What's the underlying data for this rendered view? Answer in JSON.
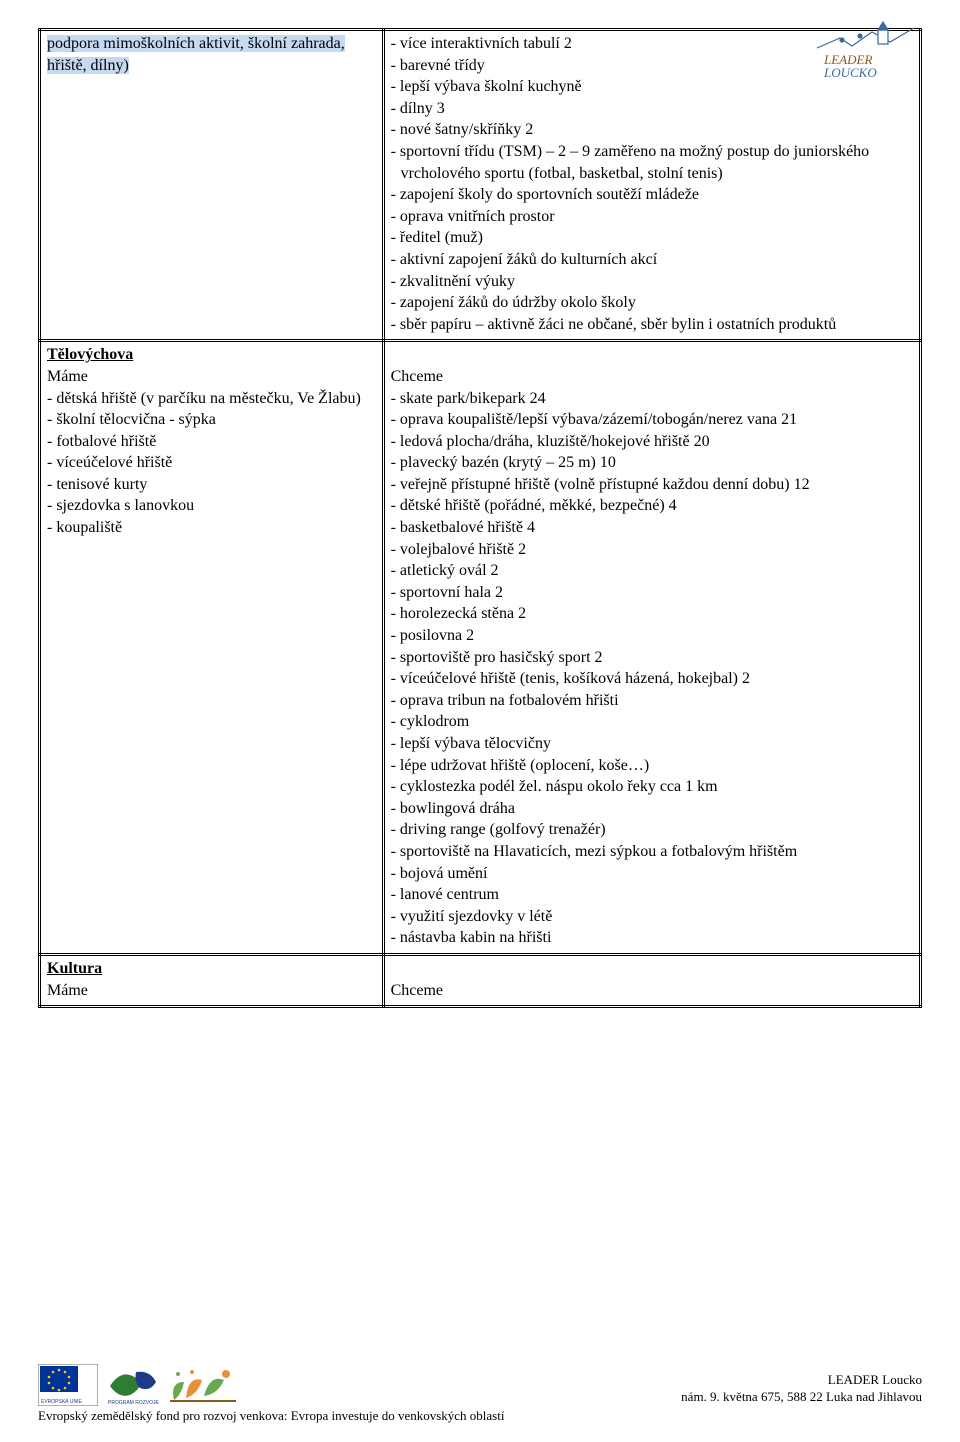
{
  "left_top_highlight": "podpora mimoškolních aktivit, školní zahrada, hřiště, dílny)",
  "right_top_items": [
    "více interaktivních tabulí 2",
    "barevné třídy",
    "lepší výbava školní kuchyně",
    "dílny 3",
    "nové šatny/skříňky 2",
    "sportovní třídu (TSM) – 2 – 9 zaměřeno na možný postup do juniorského vrcholového sportu (fotbal, basketbal, stolní tenis)",
    "zapojení školy do sportovních soutěží mládeže",
    "oprava vnitřních prostor",
    "ředitel (muž)",
    "aktivní zapojení žáků do kulturních akcí",
    "zkvalitnění výuky",
    "zapojení žáků do údržby okolo školy",
    "sběr papíru – aktivně žáci ne občané, sběr bylin i ostatních produktů"
  ],
  "section_televychova": "Tělovýchova",
  "mame": "Máme",
  "chceme": "Chceme",
  "left_tel_items": [
    "dětská hřiště (v parčíku na městečku, Ve Žlabu)",
    "školní tělocvična - sýpka",
    "fotbalové hřiště",
    "víceúčelové hřiště",
    "tenisové kurty",
    "sjezdovka s lanovkou",
    "koupaliště"
  ],
  "right_tel_items": [
    "skate park/bikepark 24",
    "oprava koupaliště/lepší výbava/zázemí/tobogán/nerez vana 21",
    "ledová plocha/dráha, kluziště/hokejové hřiště 20",
    "plavecký bazén (krytý – 25 m) 10",
    "veřejně přístupné hřiště (volně přístupné každou denní dobu) 12",
    "dětské hřiště (pořádné, měkké, bezpečné) 4",
    "basketbalové hřiště 4",
    "volejbalové hřiště 2",
    "atletický ovál 2",
    "sportovní hala 2",
    "horolezecká stěna 2",
    "posilovna 2",
    "sportoviště pro hasičský sport 2",
    "víceúčelové hřiště (tenis, košíková házená, hokejbal) 2",
    "oprava tribun na fotbalovém hřišti",
    "cyklodrom",
    "lepší výbava tělocvičny",
    "lépe udržovat hřiště (oplocení, koše…)",
    "cyklostezka podél žel. náspu okolo řeky cca 1 km",
    "bowlingová dráha",
    "driving range (golfový trenažér)",
    "sportoviště na Hlavaticích, mezi sýpkou a fotbalovým hřištěm",
    "bojová umění",
    "lanové centrum",
    "využití sjezdovky v létě",
    "nástavba kabin na hřišti"
  ],
  "section_kultura": "Kultura",
  "logo_top_title": "LEADER LOUCKO",
  "logo_top_color_main": "#3b6aa0",
  "logo_top_color_accent": "#8a5a1a",
  "footer": {
    "leader_line1": "LEADER Loucko",
    "leader_line2": "nám. 9. května 675, 588 22  Luka nad Jihlavou",
    "caption": "Evropský zemědělský fond pro rozvoj venkova: Evropa investuje do venkovských oblastí",
    "eu_flag_bg": "#003399",
    "eu_star": "#ffcc00",
    "prv_green": "#2e7d32",
    "prv_blue": "#1e3a8a",
    "leaf_green": "#6aa84f",
    "leaf_orange": "#e69138"
  }
}
